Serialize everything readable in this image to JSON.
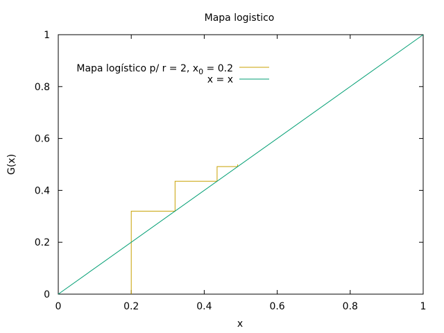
{
  "chart_data": {
    "type": "line",
    "title": "Mapa logistico",
    "xlabel": "x",
    "ylabel": "G(x)",
    "xlim": [
      0,
      1
    ],
    "ylim": [
      0,
      1
    ],
    "x_ticks": [
      "0",
      "0.2",
      "0.4",
      "0.6",
      "0.8",
      "1"
    ],
    "y_ticks": [
      "0",
      "0.2",
      "0.4",
      "0.6",
      "0.8",
      "1"
    ],
    "grid": false,
    "legend_position": "top-left",
    "series": [
      {
        "name": "Mapa logístico p/ r = 2, x0 = 0.2",
        "legend_main": "Mapa logístico p/ r = 2, x",
        "legend_sub": "0",
        "legend_tail": " = 0.2",
        "color": "#c8a000",
        "style": "cobweb",
        "x": [
          0.2,
          0.2,
          0.32,
          0.32,
          0.4352,
          0.4352,
          0.4916,
          0.4916
        ],
        "y": [
          0.0,
          0.32,
          0.32,
          0.4352,
          0.4352,
          0.4916,
          0.4916,
          0.4999
        ]
      },
      {
        "name": "x = x",
        "color": "#009e73",
        "style": "line",
        "x": [
          0,
          1
        ],
        "y": [
          0,
          1
        ]
      }
    ]
  }
}
